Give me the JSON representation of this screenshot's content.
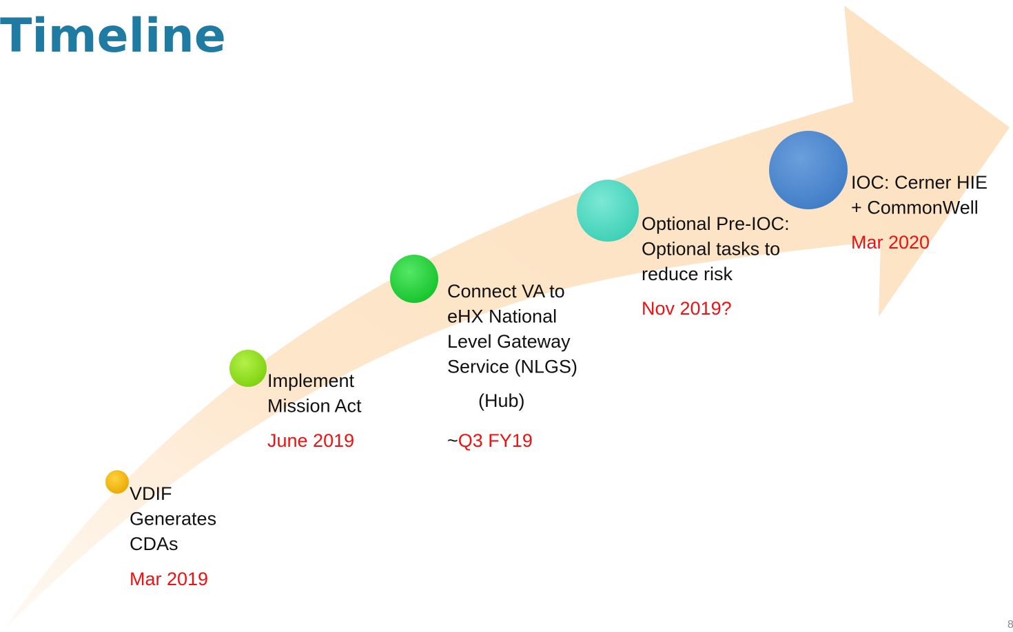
{
  "title": "Timeline",
  "milestones": [
    {
      "lines": [
        "VDIF",
        "Generates",
        "CDAs"
      ],
      "date": "Mar 2019"
    },
    {
      "lines": [
        "Implement",
        "Mission Act"
      ],
      "date": "June 2019"
    },
    {
      "lines": [
        "Connect VA to",
        "eHX National",
        "Level Gateway",
        "Service (NLGS)"
      ],
      "note": "(Hub)",
      "date_prefix": "~",
      "date": "Q3 FY19"
    },
    {
      "lines": [
        "Optional Pre-IOC:",
        "Optional tasks to",
        "reduce risk"
      ],
      "date": "Nov 2019?"
    },
    {
      "lines": [
        "IOC: Cerner HIE",
        "+ CommonWell"
      ],
      "date": "Mar 2020"
    }
  ],
  "page_number": "8"
}
